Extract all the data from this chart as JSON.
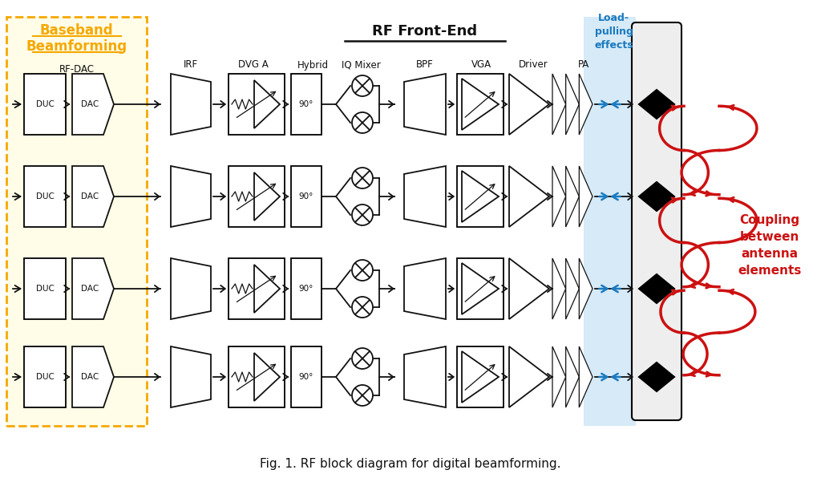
{
  "title": "Fig. 1. RF block diagram for digital beamforming.",
  "title_fontsize": 11,
  "background_color": "#ffffff",
  "num_rows": 4,
  "baseband_label_line1": "Baseband",
  "baseband_label_line2": "Beamforming",
  "rf_frontend_label": "RF Front-End",
  "load_pulling_label": "Load-\npulling\neffects",
  "coupling_label": "Coupling\nbetween\nantenna\nelements",
  "rf_dac_label": "RF-DAC",
  "col_labels": [
    "IRF",
    "DVG A",
    "Hybrid",
    "IQ Mixer",
    "BPF",
    "VGA",
    "Driver",
    "PA"
  ],
  "yellow_fill": "#fffde7",
  "yellow_border": "#f5a800",
  "blue_highlight": "#cce5f6",
  "red_color": "#cc1111",
  "blue_color": "#1a7abf",
  "dark_color": "#111111"
}
